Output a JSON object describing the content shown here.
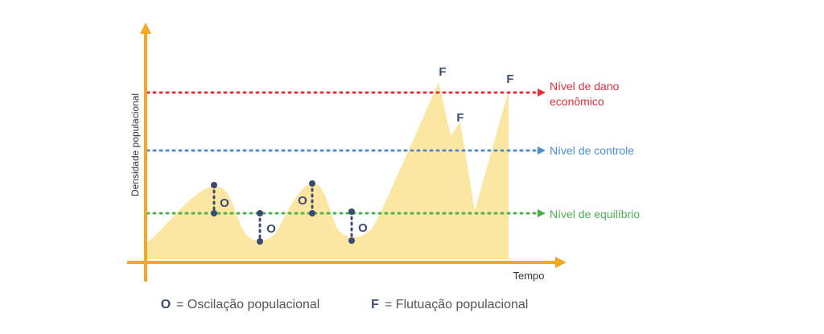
{
  "axes": {
    "y_label": "Densidade populacional",
    "x_label": "Tempo"
  },
  "levels": [
    {
      "id": "dano",
      "lines": [
        "Nível de dano",
        "econômico"
      ],
      "color": "#e0303a"
    },
    {
      "id": "controle",
      "lines": [
        "Nível de controle"
      ],
      "color": "#4a90d0"
    },
    {
      "id": "equilibrio",
      "lines": [
        "Nível de equilíbrio"
      ],
      "color": "#4caf50"
    }
  ],
  "markers": {
    "O": "O",
    "F": "F"
  },
  "legend": {
    "o_symbol": "O",
    "o_text": "= Oscilação populacional",
    "f_symbol": "F",
    "f_text": "= Flutuação populacional"
  },
  "colors": {
    "axis": "#f5a623",
    "area": "#fbe7a1",
    "marker": "#3c4a73",
    "text": "#333333"
  }
}
